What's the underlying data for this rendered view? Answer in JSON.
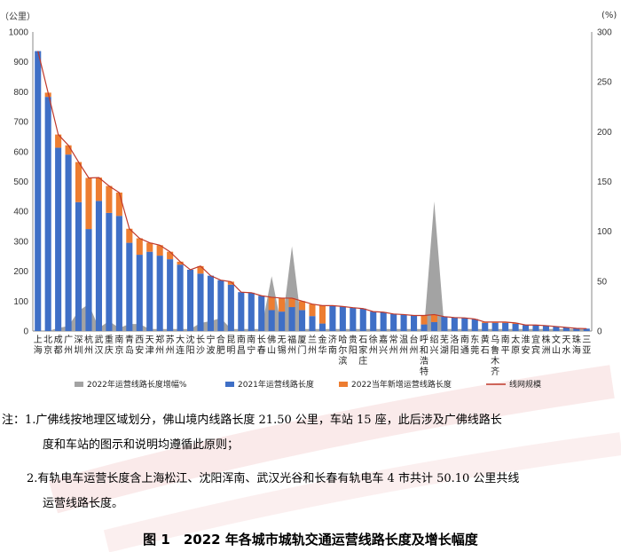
{
  "chart_data": {
    "type": "bar",
    "title": "",
    "y_unit": "（公里）",
    "y2_unit": "(%)",
    "ylim": [
      0,
      1000
    ],
    "y_ticks": [
      "0",
      "100",
      "200",
      "300",
      "400",
      "500",
      "600",
      "700",
      "800",
      "900",
      "1000"
    ],
    "y2lim": [
      0,
      300
    ],
    "y2_ticks": [
      "0",
      "50",
      "100",
      "150",
      "200",
      "250",
      "300"
    ],
    "categories": [
      "上海",
      "北京",
      "成都",
      "广州",
      "深圳",
      "杭州",
      "武汉",
      "重庆",
      "南京",
      "青岛",
      "西安",
      "天津",
      "郑州",
      "苏州",
      "大连",
      "沈阳",
      "长沙",
      "宁波",
      "合肥",
      "昆明",
      "南昌",
      "南宁",
      "长春",
      "佛山",
      "无锡",
      "福州",
      "厦门",
      "兰州",
      "金华",
      "济南",
      "哈尔滨",
      "贵阳",
      "石家庄",
      "徐州",
      "嘉兴",
      "常州",
      "温州",
      "台州",
      "呼和浩特",
      "绍兴",
      "芜湖",
      "洛阳",
      "南通",
      "东莞",
      "黄石",
      "乌鲁木齐",
      "南平",
      "太原",
      "淮安",
      "宜宾",
      "株洲",
      "文山",
      "天水",
      "珠海",
      "三亚"
    ],
    "series": [
      {
        "name": "2022年运营线路长度增幅%",
        "type": "area",
        "values": [
          0,
          0,
          3,
          5,
          20,
          27,
          3,
          10,
          3,
          7,
          7,
          2,
          2,
          2,
          2,
          2,
          8,
          10,
          13,
          2,
          2,
          2,
          2,
          55,
          3,
          85,
          2,
          2,
          2,
          2,
          2,
          2,
          2,
          2,
          2,
          2,
          2,
          2,
          2,
          130,
          2,
          2,
          2,
          2,
          2,
          2,
          2,
          2,
          2,
          2,
          2,
          2,
          2,
          2,
          2
        ]
      },
      {
        "name": "2021年运营线路长度",
        "type": "bar",
        "values": [
          936,
          783,
          613,
          590,
          431,
          341,
          435,
          395,
          385,
          295,
          255,
          265,
          252,
          240,
          222,
          205,
          192,
          185,
          170,
          155,
          130,
          128,
          118,
          70,
          65,
          80,
          70,
          50,
          25,
          85,
          82,
          78,
          75,
          65,
          63,
          57,
          55,
          52,
          22,
          30,
          48,
          45,
          44,
          40,
          27,
          27,
          27,
          24,
          20,
          20,
          18,
          15,
          12,
          9,
          8
        ]
      },
      {
        "name": "2022当年新增运营线路长度",
        "type": "bar",
        "values": [
          0,
          14,
          44,
          31,
          134,
          171,
          78,
          90,
          78,
          47,
          55,
          30,
          35,
          25,
          10,
          0,
          25,
          0,
          0,
          10,
          0,
          0,
          0,
          43,
          45,
          30,
          30,
          40,
          60,
          0,
          0,
          0,
          0,
          0,
          0,
          0,
          0,
          0,
          30,
          25,
          0,
          0,
          0,
          0,
          3,
          3,
          3,
          3,
          0,
          0,
          0,
          0,
          0,
          0,
          0
        ]
      },
      {
        "name": "线网规模",
        "type": "line",
        "values": [
          936,
          797,
          657,
          621,
          565,
          512,
          513,
          485,
          463,
          342,
          310,
          295,
          287,
          265,
          232,
          205,
          217,
          185,
          170,
          165,
          130,
          128,
          118,
          113,
          110,
          110,
          100,
          90,
          85,
          85,
          82,
          78,
          75,
          65,
          63,
          57,
          55,
          52,
          52,
          55,
          48,
          45,
          44,
          40,
          30,
          30,
          30,
          27,
          20,
          20,
          18,
          15,
          12,
          9,
          8
        ]
      }
    ]
  },
  "notes": {
    "note1_line1": "注：1.广佛线按地理区域划分，佛山境内线路长度 21.50 公里，车站 15 座，此后涉及广佛线路长",
    "note1_line2": "度和车站的图示和说明均遵循此原则；",
    "note2_line1": "2.有轨电车运营长度含上海松江、沈阳浑南、武汉光谷和长春有轨电车 4 市共计 50.10 公里共线",
    "note2_line2": "运营线路长度。"
  },
  "caption": "图 1　2022 年各城市城轨交通运营线路长度及增长幅度",
  "colors": {
    "bar2021": "#3f6fc6",
    "bar2022": "#ed7d31",
    "area": "#a3a3a3",
    "line": "#c0392b"
  }
}
